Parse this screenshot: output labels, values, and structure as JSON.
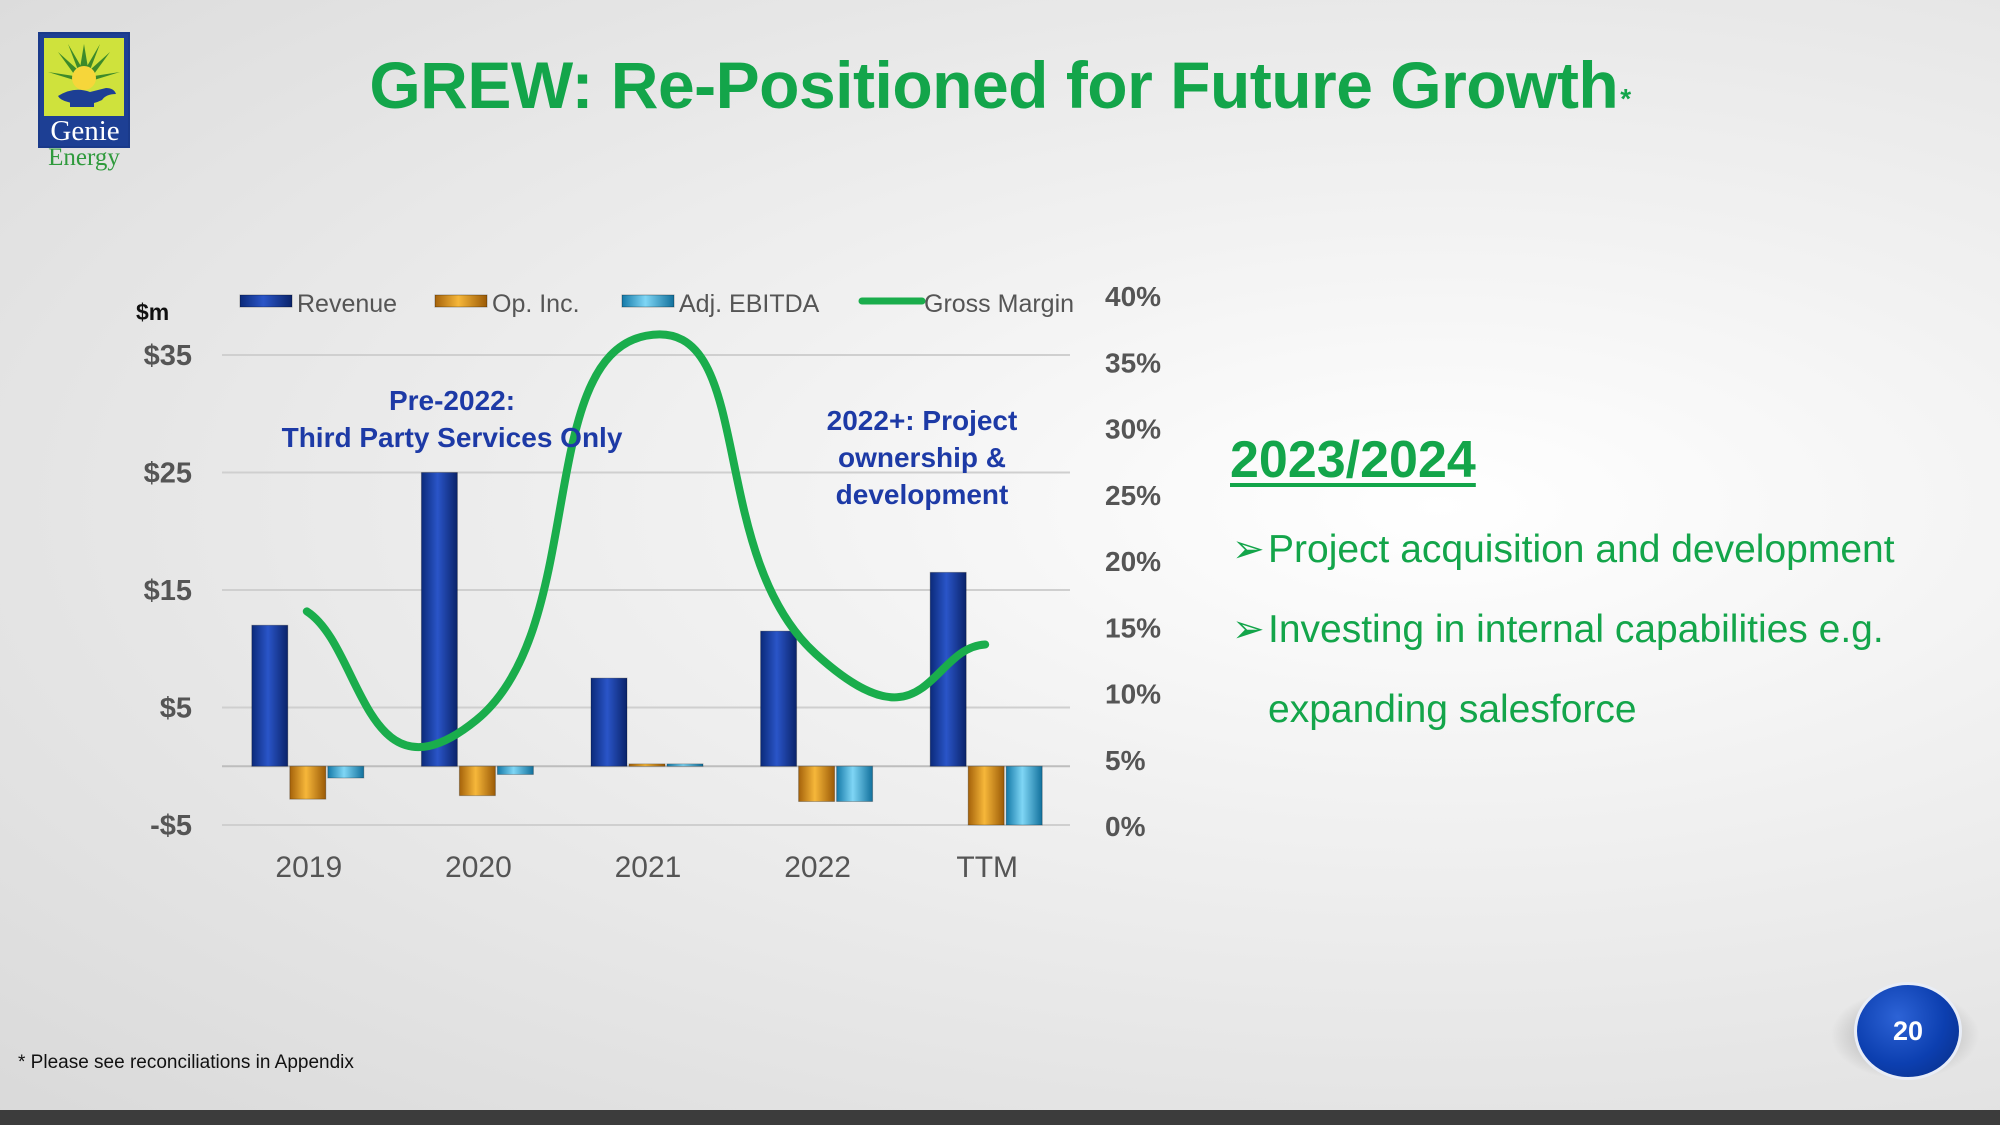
{
  "logo": {
    "word1": "Genie",
    "word2": "Energy"
  },
  "title": {
    "text": "GREW: Re-Positioned for Future Growth",
    "mark": "*"
  },
  "chart_data": {
    "type": "bar",
    "categories": [
      "2019",
      "2020",
      "2021",
      "2022",
      "TTM"
    ],
    "series": [
      {
        "name": "Revenue",
        "axis": "left",
        "color": "#1238a0",
        "values": [
          12.0,
          25.0,
          7.5,
          11.5,
          16.5
        ]
      },
      {
        "name": "Op. Inc.",
        "axis": "left",
        "color": "#e8960f",
        "values": [
          -2.8,
          -2.5,
          0.2,
          -3.0,
          -5.0
        ]
      },
      {
        "name": "Adj. EBITDA",
        "axis": "left",
        "color": "#2aa7dd",
        "values": [
          -1.0,
          -0.7,
          0.2,
          -3.0,
          -5.0
        ]
      },
      {
        "name": "Gross Margin",
        "axis": "right",
        "type": "line",
        "color": "#1aad4c",
        "values": [
          16.2,
          8.0,
          37.0,
          13.0,
          13.7
        ]
      }
    ],
    "left_axis": {
      "label": "$m",
      "ticks": [
        "$35",
        "$25",
        "$15",
        "$5",
        "-$5"
      ],
      "tick_values": [
        35,
        25,
        15,
        5,
        -5
      ],
      "range": [
        -5,
        35
      ]
    },
    "right_axis": {
      "ticks": [
        "40%",
        "35%",
        "30%",
        "25%",
        "20%",
        "15%",
        "10%",
        "5%",
        "0%"
      ],
      "tick_values": [
        40,
        35,
        30,
        25,
        20,
        15,
        10,
        5,
        0
      ],
      "range": [
        0,
        40
      ]
    },
    "annotations": [
      {
        "lines": [
          "Pre-2022:",
          "Third Party Services Only"
        ]
      },
      {
        "lines": [
          "2022+: Project",
          "ownership &",
          "development"
        ]
      }
    ],
    "legend_placement": "top",
    "grid": true
  },
  "right_panel": {
    "heading": "2023/2024",
    "bullets": [
      {
        "arrow": "➢",
        "text": "Project acquisition and development"
      },
      {
        "arrow": "➢",
        "text": "Investing in internal capabilities e.g. expanding salesforce"
      }
    ]
  },
  "footnote": "* Please see reconciliations in Appendix",
  "page_number": "20"
}
